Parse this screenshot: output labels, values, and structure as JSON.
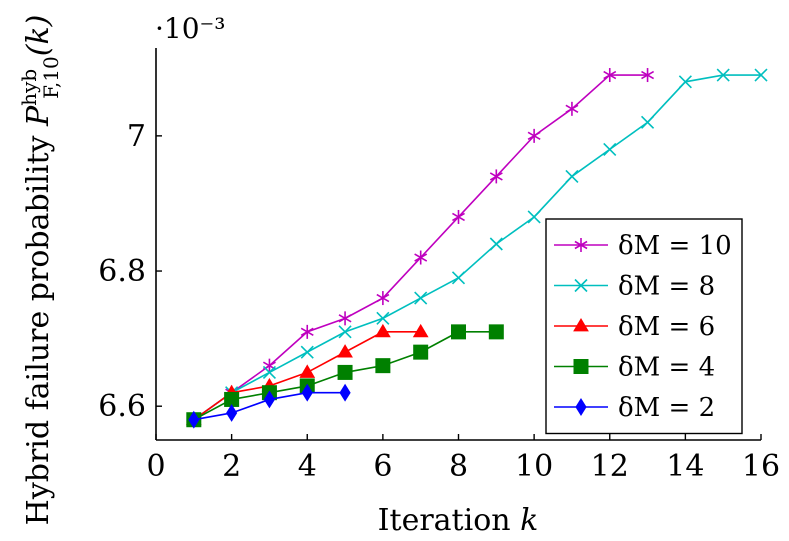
{
  "chart_data": {
    "type": "line",
    "xlabel": "Iteration k",
    "ylabel": "Hybrid failure probability P_{F,10}^{hyb}(k)",
    "y_multiplier": "·10⁻³",
    "xlim": [
      0,
      16
    ],
    "ylim": [
      6.55,
      7.13
    ],
    "x_ticks": [
      0,
      2,
      4,
      6,
      8,
      10,
      12,
      14,
      16
    ],
    "y_ticks": [
      6.6,
      6.8,
      7
    ],
    "y_tick_labels": [
      "6.6",
      "6.8",
      "7"
    ],
    "legend_position": "right",
    "series": [
      {
        "name": "δM = 10",
        "color": "#bf00bf",
        "marker": "star",
        "x": [
          1,
          2,
          3,
          4,
          5,
          6,
          7,
          8,
          9,
          10,
          11,
          12,
          13
        ],
        "y": [
          6.58,
          6.62,
          6.66,
          6.71,
          6.73,
          6.76,
          6.82,
          6.88,
          6.94,
          7.0,
          7.04,
          7.09,
          7.09
        ]
      },
      {
        "name": "δM = 8",
        "color": "#00bfbf",
        "marker": "x",
        "x": [
          1,
          2,
          3,
          4,
          5,
          6,
          7,
          8,
          9,
          10,
          11,
          12,
          13,
          14,
          15,
          16
        ],
        "y": [
          6.58,
          6.62,
          6.65,
          6.68,
          6.71,
          6.73,
          6.76,
          6.79,
          6.84,
          6.88,
          6.94,
          6.98,
          7.02,
          7.08,
          7.09,
          7.09
        ]
      },
      {
        "name": "δM = 6",
        "color": "#ff0000",
        "marker": "triangle",
        "x": [
          1,
          2,
          3,
          4,
          5,
          6,
          7
        ],
        "y": [
          6.58,
          6.62,
          6.63,
          6.65,
          6.68,
          6.71,
          6.71
        ]
      },
      {
        "name": "δM = 4",
        "color": "#008000",
        "marker": "square",
        "x": [
          1,
          2,
          3,
          4,
          5,
          6,
          7,
          8,
          9
        ],
        "y": [
          6.58,
          6.61,
          6.62,
          6.63,
          6.65,
          6.66,
          6.68,
          6.71,
          6.71
        ]
      },
      {
        "name": "δM = 2",
        "color": "#0000ff",
        "marker": "diamond",
        "x": [
          1,
          2,
          3,
          4,
          5
        ],
        "y": [
          6.58,
          6.59,
          6.61,
          6.62,
          6.62
        ]
      }
    ]
  }
}
